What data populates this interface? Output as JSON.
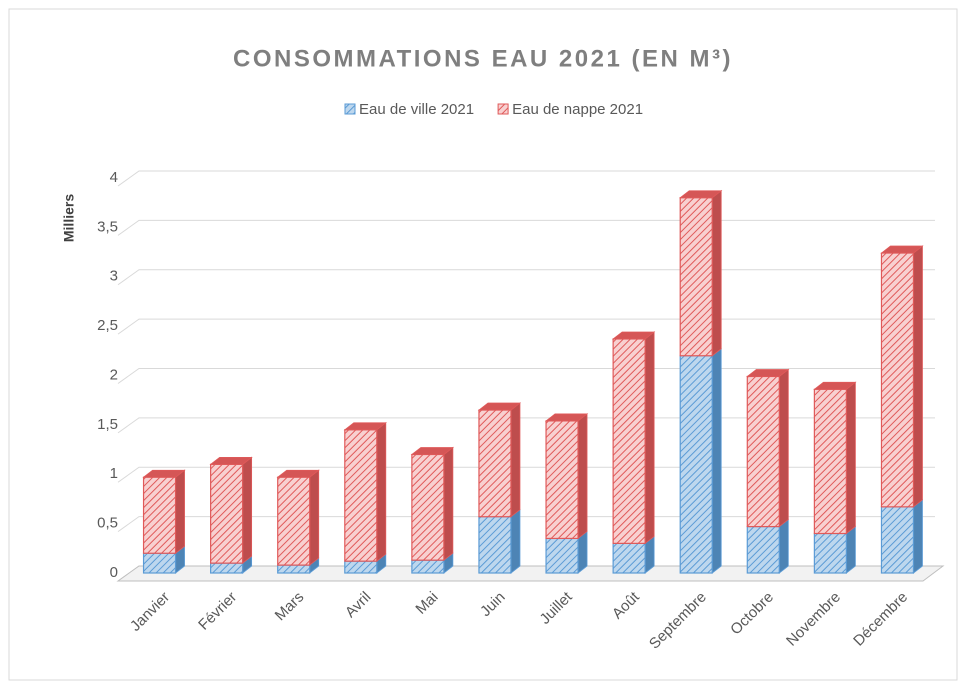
{
  "chart_data": {
    "type": "stacked_bar",
    "title": "CONSOMMATIONS EAU 2021 (EN M³)",
    "y_label": "Milliers",
    "categories": [
      "Janvier",
      "Février",
      "Mars",
      "Avril",
      "Mai",
      "Juin",
      "Juillet",
      "Août",
      "Septembre",
      "Octobre",
      "Novembre",
      "Décembre"
    ],
    "series": [
      {
        "name": "Eau de ville 2021",
        "color": "#5b9bd5",
        "values": [
          0.2,
          0.1,
          0.08,
          0.12,
          0.13,
          0.57,
          0.35,
          0.3,
          2.2,
          0.47,
          0.4,
          0.67
        ]
      },
      {
        "name": "Eau de nappe 2021",
        "color": "#e05a5a",
        "values": [
          0.77,
          1.0,
          0.89,
          1.33,
          1.07,
          1.08,
          1.19,
          2.07,
          1.6,
          1.52,
          1.46,
          2.57
        ]
      }
    ],
    "ylim": [
      0,
      4
    ],
    "yticks": [
      0,
      {
        "value": 0.5,
        "label": "0,5"
      },
      1,
      {
        "value": 1.5,
        "label": "1,5"
      },
      2,
      {
        "value": 2.5,
        "label": "2,5"
      },
      3,
      {
        "value": 3.5,
        "label": "3,5"
      },
      4
    ],
    "grid": true,
    "legend": "top"
  }
}
